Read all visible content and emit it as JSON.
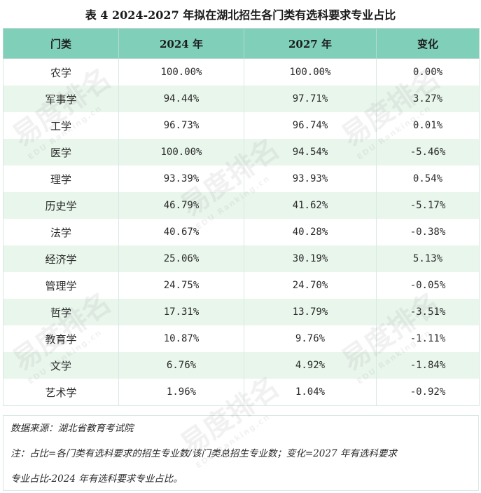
{
  "title": "表 4  2024-2027 年拟在湖北招生各门类有选科要求专业占比",
  "table": {
    "headers": [
      "门类",
      "2024 年",
      "2027 年",
      "变化"
    ],
    "rows": [
      [
        "农学",
        "100.00%",
        "100.00%",
        "0.00%"
      ],
      [
        "军事学",
        "94.44%",
        "97.71%",
        "3.27%"
      ],
      [
        "工学",
        "96.73%",
        "96.74%",
        "0.01%"
      ],
      [
        "医学",
        "100.00%",
        "94.54%",
        "-5.46%"
      ],
      [
        "理学",
        "93.39%",
        "93.93%",
        "0.54%"
      ],
      [
        "历史学",
        "46.79%",
        "41.62%",
        "-5.17%"
      ],
      [
        "法学",
        "40.67%",
        "40.28%",
        "-0.38%"
      ],
      [
        "经济学",
        "25.06%",
        "30.19%",
        "5.13%"
      ],
      [
        "管理学",
        "24.75%",
        "24.70%",
        "-0.05%"
      ],
      [
        "哲学",
        "17.31%",
        "13.79%",
        "-3.51%"
      ],
      [
        "教育学",
        "10.87%",
        "9.76%",
        "-1.11%"
      ],
      [
        "文学",
        "6.76%",
        "4.92%",
        "-1.84%"
      ],
      [
        "艺术学",
        "1.96%",
        "1.04%",
        "-0.92%"
      ]
    ]
  },
  "notes": {
    "source": "数据来源：湖北省教育考试院",
    "note_line1": "注：占比=各门类有选科要求的招生专业数/该门类总招生专业数；变化=2027 年有选科要求",
    "note_line2": "专业占比-2024 年有选科要求专业占比。"
  },
  "watermark": {
    "text": "易度排名",
    "sub": "EDU Ranking.cn"
  },
  "colors": {
    "header_bg": "#7fcfb9",
    "stripe_bg": "#e9f6ec"
  }
}
